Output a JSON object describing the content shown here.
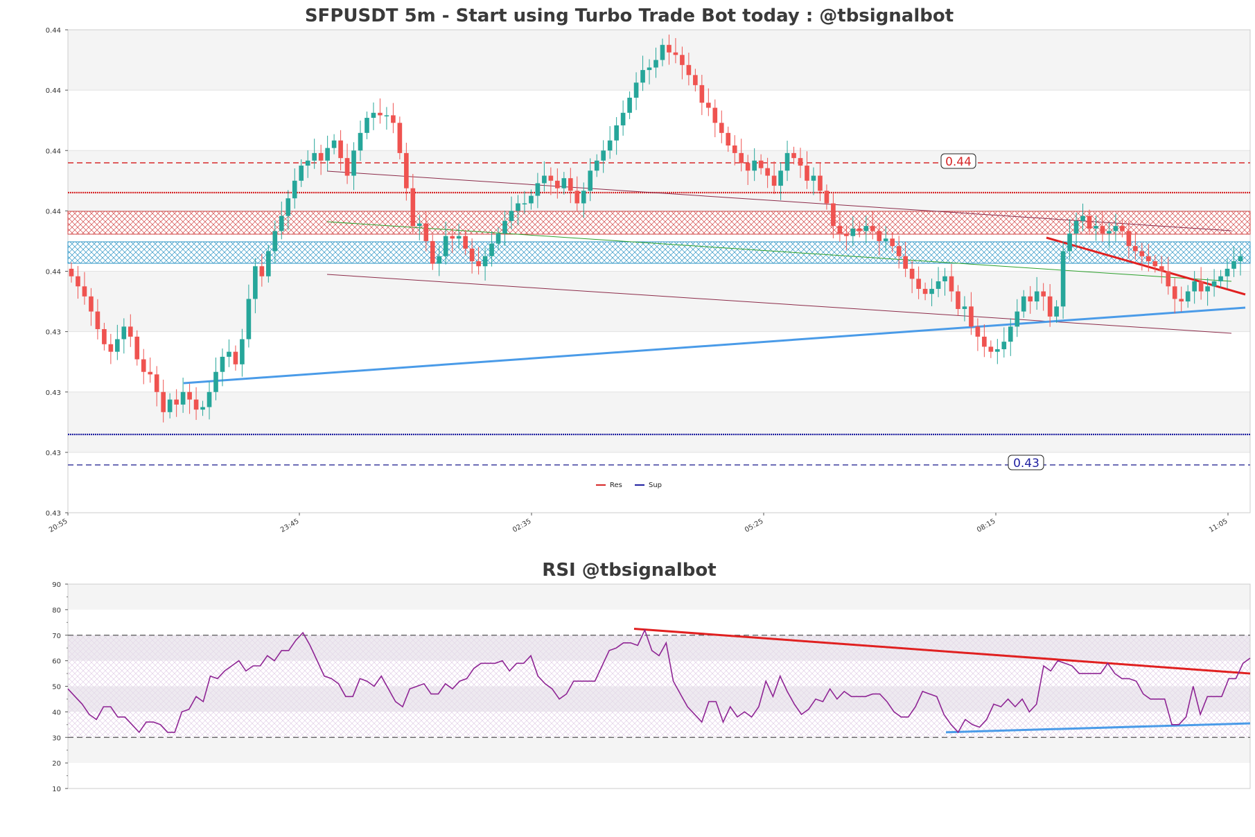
{
  "chart_data": [
    {
      "type": "candlestick",
      "title": "SFPUSDT 5m - Start using Turbo Trade Bot today : @tbsignalbot",
      "y_tick_labels": [
        "0.44",
        "0.44",
        "0.44",
        "0.44",
        "0.44",
        "0.43",
        "0.43",
        "0.43",
        "0.43"
      ],
      "x_tick_labels": [
        "20:55",
        "23:45",
        "02:35",
        "05:25",
        "08:15",
        "11:05"
      ],
      "legend": [
        {
          "label": "Res",
          "color": "#d62728"
        },
        {
          "label": "Sup",
          "color": "#1f1fa0"
        }
      ],
      "level_labels": {
        "resistance": "0.44",
        "support": "0.43"
      },
      "colors": {
        "up": "#26a69a",
        "down": "#ef5350",
        "res": "#d62728",
        "sup": "#1f1fa0",
        "trend_sup": "#4a9be8",
        "trend_res": "#e02020",
        "channel": "#8b2a48",
        "mid": "#2ca02c"
      },
      "closes": [
        0.4376,
        0.4372,
        0.4368,
        0.4362,
        0.4355,
        0.4349,
        0.4346,
        0.4351,
        0.4356,
        0.4352,
        0.4343,
        0.4338,
        0.4337,
        0.433,
        0.4322,
        0.4327,
        0.4325,
        0.433,
        0.4327,
        0.4323,
        0.4324,
        0.433,
        0.4338,
        0.4344,
        0.4346,
        0.4341,
        0.4351,
        0.4367,
        0.438,
        0.4376,
        0.4386,
        0.4394,
        0.44,
        0.4407,
        0.4414,
        0.442,
        0.4422,
        0.4425,
        0.4422,
        0.4427,
        0.443,
        0.4423,
        0.4416,
        0.4426,
        0.4433,
        0.4439,
        0.4441,
        0.444,
        0.444,
        0.4437,
        0.4425,
        0.4411,
        0.4396,
        0.4397,
        0.439,
        0.4381,
        0.4384,
        0.4392,
        0.4391,
        0.4392,
        0.4387,
        0.4382,
        0.438,
        0.4384,
        0.4389,
        0.4393,
        0.4398,
        0.4402,
        0.4405,
        0.4405,
        0.4408,
        0.4413,
        0.4416,
        0.4414,
        0.4411,
        0.4415,
        0.441,
        0.4405,
        0.441,
        0.4418,
        0.4422,
        0.4426,
        0.443,
        0.4436,
        0.4441,
        0.4447,
        0.4453,
        0.4458,
        0.4459,
        0.4462,
        0.4468,
        0.4465,
        0.4464,
        0.446,
        0.4456,
        0.4452,
        0.4445,
        0.4443,
        0.4437,
        0.4433,
        0.4428,
        0.4425,
        0.4421,
        0.4418,
        0.4422,
        0.4419,
        0.4416,
        0.4412,
        0.4418,
        0.4425,
        0.4423,
        0.442,
        0.4414,
        0.4416,
        0.441,
        0.4405,
        0.4396,
        0.4393,
        0.4392,
        0.4395,
        0.4394,
        0.4396,
        0.4394,
        0.439,
        0.4391,
        0.4388,
        0.4384,
        0.4379,
        0.4375,
        0.4371,
        0.4369,
        0.4371,
        0.4374,
        0.4376,
        0.437,
        0.4363,
        0.4364,
        0.4356,
        0.4352,
        0.4348,
        0.4346,
        0.4347,
        0.435,
        0.4356,
        0.4362,
        0.4368,
        0.4366,
        0.437,
        0.4368,
        0.436,
        0.4364,
        0.4386,
        0.4393,
        0.4398,
        0.44,
        0.4395,
        0.4396,
        0.4393,
        0.4394,
        0.4396,
        0.4394,
        0.4388,
        0.4386,
        0.4384,
        0.4382,
        0.438,
        0.4378,
        0.4372,
        0.4367,
        0.4366,
        0.437,
        0.4374,
        0.437,
        0.4372,
        0.4374,
        0.4376,
        0.4379,
        0.4382,
        0.4384
      ]
    },
    {
      "type": "line",
      "title": "RSI @tbsignalbot",
      "y_tick_labels": [
        "90",
        "80",
        "70",
        "60",
        "50",
        "40",
        "30",
        "20",
        "10"
      ],
      "ylim": [
        10,
        90
      ],
      "overbought": 70,
      "oversold": 30,
      "color": "#8e2494",
      "values": [
        49,
        46,
        43,
        39,
        37,
        42,
        42,
        38,
        38,
        35,
        32,
        36,
        36,
        35,
        32,
        32,
        40,
        41,
        46,
        44,
        54,
        53,
        56,
        58,
        60,
        56,
        58,
        58,
        62,
        60,
        64,
        64,
        68,
        71,
        66,
        60,
        54,
        53,
        51,
        46,
        46,
        53,
        52,
        50,
        54,
        49,
        44,
        42,
        49,
        50,
        51,
        47,
        47,
        51,
        49,
        52,
        53,
        57,
        59,
        59,
        59,
        60,
        56,
        59,
        59,
        62,
        54,
        51,
        49,
        45,
        47,
        52,
        52,
        52,
        52,
        58,
        64,
        65,
        67,
        67,
        66,
        72,
        64,
        62,
        67,
        52,
        47,
        42,
        39,
        36,
        44,
        44,
        36,
        42,
        38,
        40,
        38,
        42,
        52,
        46,
        54,
        48,
        43,
        39,
        41,
        45,
        44,
        49,
        45,
        48,
        46,
        46,
        46,
        47,
        47,
        44,
        40,
        38,
        38,
        42,
        48,
        47,
        46,
        39,
        35,
        32,
        37,
        35,
        34,
        37,
        43,
        42,
        45,
        42,
        45,
        40,
        43,
        58,
        56,
        60,
        59,
        58,
        55,
        55,
        55,
        55,
        59,
        55,
        53,
        53,
        52,
        47,
        45,
        45,
        45,
        35,
        35,
        38,
        50,
        39,
        46,
        46,
        46,
        53,
        53,
        59,
        61
      ]
    }
  ]
}
